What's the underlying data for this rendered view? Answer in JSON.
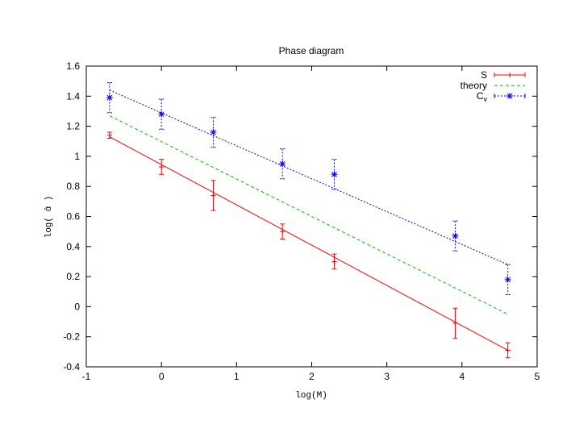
{
  "chart_data": {
    "type": "scatter",
    "title": "Phase diagram",
    "xlabel": "log(M)",
    "ylabel": "log( ᾱ )",
    "xlim": [
      -1,
      5
    ],
    "ylim": [
      -0.4,
      1.6
    ],
    "xticks": [
      -1,
      0,
      1,
      2,
      3,
      4,
      5
    ],
    "yticks": [
      -0.4,
      -0.2,
      0,
      0.2,
      0.4,
      0.6,
      0.8,
      1,
      1.2,
      1.4,
      1.6
    ],
    "xtick_labels": [
      "-1",
      "0",
      "1",
      "2",
      "3",
      "4",
      "5"
    ],
    "ytick_labels": [
      "-0.4",
      "-0.2",
      "0",
      "0.2",
      "0.4",
      "0.6",
      "0.8",
      "1",
      "1.2",
      "1.4",
      "1.6"
    ],
    "grid": false,
    "legend_position": "top-right",
    "series": [
      {
        "name": "S",
        "color": "#ff0000",
        "marker": "plus",
        "line": "solid",
        "x": [
          -0.69,
          0.0,
          0.69,
          1.61,
          2.3,
          3.91,
          4.61
        ],
        "y": [
          1.14,
          0.93,
          0.74,
          0.5,
          0.3,
          -0.11,
          -0.29
        ],
        "err": [
          0.02,
          0.05,
          0.1,
          0.05,
          0.05,
          0.1,
          0.05
        ],
        "fit": {
          "x": [
            -0.69,
            4.61
          ],
          "y": [
            1.13,
            -0.29
          ]
        }
      },
      {
        "name": "theory",
        "color": "#00c000",
        "marker": "none",
        "line": "dashed",
        "fit": {
          "x": [
            -0.69,
            4.61
          ],
          "y": [
            1.27,
            -0.05
          ]
        }
      },
      {
        "name": "C",
        "name_sub": "v",
        "color": "#0000ff",
        "marker": "star",
        "line": "dotted",
        "x": [
          -0.69,
          0.0,
          0.69,
          1.61,
          2.3,
          3.91,
          4.61
        ],
        "y": [
          1.39,
          1.28,
          1.16,
          0.95,
          0.88,
          0.47,
          0.18
        ],
        "err": [
          0.1,
          0.1,
          0.1,
          0.1,
          0.1,
          0.1,
          0.1
        ],
        "fit": {
          "x": [
            -0.69,
            4.61
          ],
          "y": [
            1.44,
            0.28
          ]
        }
      }
    ]
  }
}
